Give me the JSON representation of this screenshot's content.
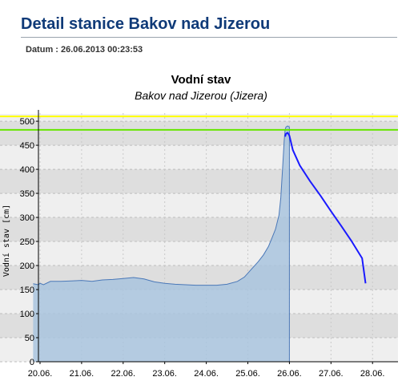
{
  "page": {
    "title": "Detail stanice Bakov nad Jizerou",
    "datum": "Datum : 26.06.2013 00:23:53"
  },
  "chart_data": {
    "type": "line",
    "title": "Vodní stav",
    "subtitle": "Bakov nad Jizerou (Jizera)",
    "ylabel": "Vodní stav [cm]",
    "xlabel": "",
    "x_tick_labels": [
      "20.06.",
      "21.06.",
      "22.06.",
      "23.06.",
      "24.06.",
      "25.06.",
      "26.06.",
      "27.06.",
      "28.06."
    ],
    "y_ticks": [
      0,
      50,
      100,
      150,
      200,
      250,
      300,
      350,
      400,
      450,
      500
    ],
    "ylim": [
      0,
      515
    ],
    "xlim_days": [
      "19.06. 20:00",
      "28.06. 09:00"
    ],
    "grid": true,
    "thresholds": [
      {
        "value": 510,
        "color": "#ffff00"
      },
      {
        "value": 482,
        "color": "#66e600"
      }
    ],
    "series": [
      {
        "kind": "measured-area",
        "color": "#4a78b8",
        "fill": "#a9c4de",
        "points": [
          [
            "19.06. 20:00",
            162
          ],
          [
            "19.06. 23:00",
            160
          ],
          [
            "20.06. 00:00",
            163
          ],
          [
            "20.06. 02:00",
            160
          ],
          [
            "20.06. 06:00",
            167
          ],
          [
            "20.06. 12:00",
            167
          ],
          [
            "20.06. 18:00",
            168
          ],
          [
            "21.06. 00:00",
            169
          ],
          [
            "21.06. 06:00",
            167
          ],
          [
            "21.06. 12:00",
            170
          ],
          [
            "21.06. 18:00",
            171
          ],
          [
            "22.06. 00:00",
            173
          ],
          [
            "22.06. 06:00",
            175
          ],
          [
            "22.06. 12:00",
            172
          ],
          [
            "22.06. 18:00",
            166
          ],
          [
            "23.06. 00:00",
            163
          ],
          [
            "23.06. 06:00",
            161
          ],
          [
            "23.06. 12:00",
            160
          ],
          [
            "23.06. 18:00",
            159
          ],
          [
            "24.06. 00:00",
            159
          ],
          [
            "24.06. 06:00",
            159
          ],
          [
            "24.06. 12:00",
            161
          ],
          [
            "24.06. 18:00",
            167
          ],
          [
            "24.06. 22:00",
            176
          ],
          [
            "25.06. 02:00",
            192
          ],
          [
            "25.06. 06:00",
            208
          ],
          [
            "25.06. 09:00",
            222
          ],
          [
            "25.06. 12:00",
            240
          ],
          [
            "25.06. 14:00",
            258
          ],
          [
            "25.06. 16:00",
            276
          ],
          [
            "25.06. 18:00",
            305
          ],
          [
            "25.06. 19:00",
            340
          ],
          [
            "25.06. 20:00",
            400
          ],
          [
            "25.06. 21:00",
            460
          ],
          [
            "25.06. 21:30",
            482
          ],
          [
            "25.06. 22:00",
            488
          ],
          [
            "25.06. 23:00",
            490
          ],
          [
            "26.06. 00:00",
            488
          ]
        ]
      },
      {
        "kind": "forecast-line",
        "color": "#1a1aff",
        "points": [
          [
            "25.06. 21:30",
            468
          ],
          [
            "25.06. 22:00",
            474
          ],
          [
            "25.06. 23:00",
            476
          ],
          [
            "26.06. 00:00",
            470
          ],
          [
            "26.06. 02:00",
            440
          ],
          [
            "26.06. 06:00",
            408
          ],
          [
            "26.06. 12:00",
            375
          ],
          [
            "26.06. 18:00",
            345
          ],
          [
            "27.06. 00:00",
            313
          ],
          [
            "27.06. 06:00",
            282
          ],
          [
            "27.06. 12:00",
            250
          ],
          [
            "27.06. 18:00",
            215
          ],
          [
            "27.06. 20:00",
            163
          ]
        ]
      }
    ]
  }
}
